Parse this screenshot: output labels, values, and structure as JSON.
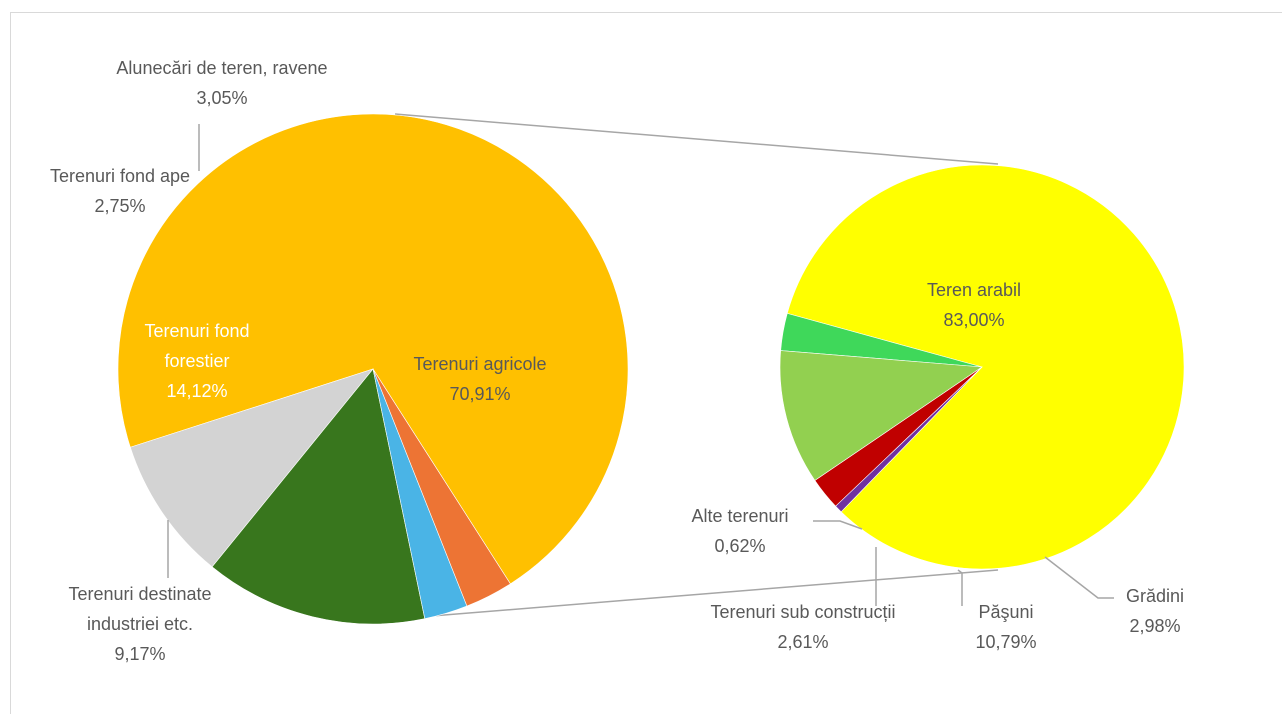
{
  "chart_data": [
    {
      "type": "pie",
      "slices": [
        {
          "label": "Terenuri agricole",
          "percent_label": "70,91%",
          "value": 70.91,
          "color": "#ffc000"
        },
        {
          "label": "Terenuri destinate industriei etc.",
          "percent_label": "9,17%",
          "value": 9.17,
          "color": "#d3d3d3"
        },
        {
          "label": "Terenuri fond forestier",
          "percent_label": "14,12%",
          "value": 14.12,
          "color": "#38761d"
        },
        {
          "label": "Terenuri fond ape",
          "percent_label": "2,75%",
          "value": 2.75,
          "color": "#4ab4e6"
        },
        {
          "label": "Alunecări de teren, ravene",
          "percent_label": "3,05%",
          "value": 3.05,
          "color": "#ed7434"
        }
      ]
    },
    {
      "type": "pie",
      "breakdown_of": "Terenuri agricole",
      "slices": [
        {
          "label": "Teren arabil",
          "percent_label": "83,00%",
          "value": 83.0,
          "color": "#ffff00"
        },
        {
          "label": "Grădini",
          "percent_label": "2,98%",
          "value": 2.98,
          "color": "#3fd85a"
        },
        {
          "label": "Păşuni",
          "percent_label": "10,79%",
          "value": 10.79,
          "color": "#92d050"
        },
        {
          "label": "Terenuri sub construcții",
          "percent_label": "2,61%",
          "value": 2.61,
          "color": "#c00000"
        },
        {
          "label": "Alte terenuri",
          "percent_label": "0,62%",
          "value": 0.62,
          "color": "#7030a0"
        }
      ]
    }
  ],
  "colors": {
    "label_text": "#595959",
    "label_text_dark": "#ffffff",
    "leader_line": "#a6a6a6"
  }
}
